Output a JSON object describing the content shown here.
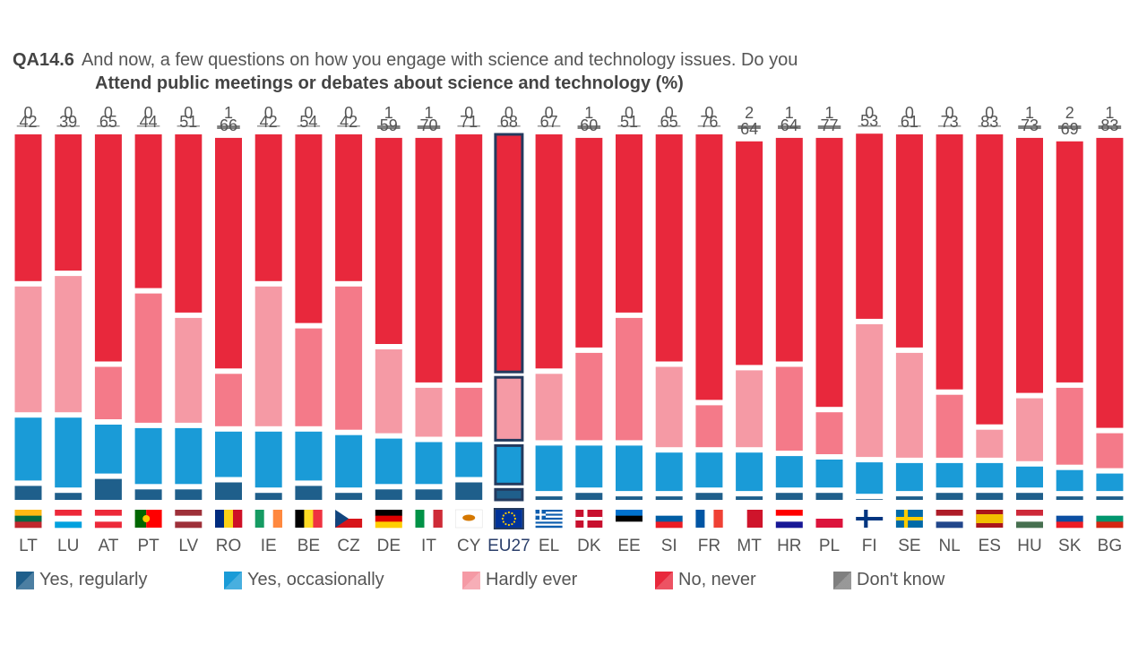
{
  "header": {
    "question_code": "QA14.6",
    "question_text": "And now, a few questions on how you engage with science and technology issues. Do you",
    "subtitle": "Attend public meetings or debates about science and technology  (%)"
  },
  "colors": {
    "yes_regularly": "#1f5f8b",
    "yes_occasionally": "#1a9bd7",
    "hardly_ever": "#f59aa5",
    "hardly_ever_alt": "#f47a89",
    "no_never": "#e8283c",
    "dont_know": "#7f7f7f",
    "highlight_border": "#243a5e",
    "label": "#555555"
  },
  "chart_data": {
    "type": "bar",
    "stacked": true,
    "categories": [
      "LT",
      "LU",
      "AT",
      "PT",
      "LV",
      "RO",
      "IE",
      "BE",
      "CZ",
      "DE",
      "IT",
      "CY",
      "EU27",
      "EL",
      "DK",
      "EE",
      "SI",
      "FR",
      "MT",
      "HR",
      "PL",
      "FI",
      "SE",
      "NL",
      "ES",
      "HU",
      "SK",
      "BG"
    ],
    "highlight": "EU27",
    "series": [
      {
        "name": "Yes, regularly",
        "values": [
          4,
          2,
          6,
          3,
          3,
          5,
          2,
          4,
          2,
          3,
          3,
          5,
          3,
          1,
          2,
          1,
          1,
          2,
          1,
          2,
          2,
          0,
          1,
          2,
          2,
          2,
          1,
          1
        ]
      },
      {
        "name": "Yes, occasionally",
        "values": [
          18,
          20,
          14,
          16,
          16,
          13,
          16,
          14,
          15,
          13,
          12,
          10,
          11,
          13,
          12,
          13,
          11,
          10,
          11,
          9,
          8,
          9,
          8,
          7,
          7,
          6,
          6,
          5
        ]
      },
      {
        "name": "Hardly ever",
        "values": [
          36,
          39,
          15,
          37,
          30,
          15,
          40,
          28,
          41,
          24,
          14,
          14,
          18,
          19,
          25,
          35,
          23,
          12,
          22,
          24,
          12,
          38,
          30,
          18,
          8,
          18,
          22,
          10
        ]
      },
      {
        "name": "No, never",
        "values": [
          42,
          39,
          65,
          44,
          51,
          66,
          42,
          54,
          42,
          59,
          70,
          71,
          68,
          67,
          60,
          51,
          65,
          76,
          64,
          64,
          77,
          53,
          61,
          73,
          83,
          73,
          69,
          83
        ]
      },
      {
        "name": "Don't know",
        "values": [
          0,
          0,
          0,
          0,
          0,
          1,
          0,
          0,
          0,
          1,
          1,
          0,
          0,
          0,
          1,
          0,
          0,
          0,
          2,
          1,
          1,
          0,
          0,
          0,
          0,
          1,
          2,
          1
        ]
      }
    ]
  },
  "flags": {
    "LT": {
      "type": "h",
      "colors": [
        "#fdb913",
        "#006a44",
        "#c1272d"
      ]
    },
    "LU": {
      "type": "h",
      "colors": [
        "#ed2939",
        "#ffffff",
        "#00a1de"
      ]
    },
    "AT": {
      "type": "h",
      "colors": [
        "#ed2939",
        "#ffffff",
        "#ed2939"
      ]
    },
    "PT": {
      "type": "vsplit",
      "colors": [
        "#006600",
        "#ff0000"
      ]
    },
    "LV": {
      "type": "h",
      "colors": [
        "#9e3039",
        "#ffffff",
        "#9e3039"
      ]
    },
    "RO": {
      "type": "v",
      "colors": [
        "#002b7f",
        "#fcd116",
        "#ce1126"
      ]
    },
    "IE": {
      "type": "v",
      "colors": [
        "#169b62",
        "#ffffff",
        "#ff883e"
      ]
    },
    "BE": {
      "type": "v",
      "colors": [
        "#000000",
        "#fdda24",
        "#ef3340"
      ]
    },
    "CZ": {
      "type": "cz",
      "colors": [
        "#ffffff",
        "#d7141a",
        "#11457e"
      ]
    },
    "DE": {
      "type": "h",
      "colors": [
        "#000000",
        "#dd0000",
        "#ffce00"
      ]
    },
    "IT": {
      "type": "v",
      "colors": [
        "#009246",
        "#ffffff",
        "#ce2b37"
      ]
    },
    "CY": {
      "type": "solid",
      "colors": [
        "#ffffff",
        "#d57800"
      ]
    },
    "EU27": {
      "type": "eu",
      "colors": [
        "#003399",
        "#ffcc00"
      ]
    },
    "EL": {
      "type": "stripes",
      "colors": [
        "#0d5eaf",
        "#ffffff"
      ]
    },
    "DK": {
      "type": "nordic",
      "colors": [
        "#c8102e",
        "#ffffff"
      ]
    },
    "EE": {
      "type": "h",
      "colors": [
        "#0072ce",
        "#000000",
        "#ffffff"
      ]
    },
    "SI": {
      "type": "h",
      "colors": [
        "#ffffff",
        "#005da4",
        "#ed1c24"
      ]
    },
    "FR": {
      "type": "v",
      "colors": [
        "#0055a4",
        "#ffffff",
        "#ef4135"
      ]
    },
    "MT": {
      "type": "vsplit",
      "colors": [
        "#ffffff",
        "#cf142b"
      ]
    },
    "HR": {
      "type": "h",
      "colors": [
        "#ff0000",
        "#ffffff",
        "#171796"
      ]
    },
    "PL": {
      "type": "h2",
      "colors": [
        "#ffffff",
        "#dc143c"
      ]
    },
    "FI": {
      "type": "nordic",
      "colors": [
        "#ffffff",
        "#003580"
      ]
    },
    "SE": {
      "type": "nordic",
      "colors": [
        "#006aa7",
        "#fecc00"
      ]
    },
    "NL": {
      "type": "h",
      "colors": [
        "#ae1c28",
        "#ffffff",
        "#21468b"
      ]
    },
    "ES": {
      "type": "es",
      "colors": [
        "#aa151b",
        "#f1bf00"
      ]
    },
    "HU": {
      "type": "h",
      "colors": [
        "#ce2939",
        "#ffffff",
        "#477050"
      ]
    },
    "SK": {
      "type": "h",
      "colors": [
        "#ffffff",
        "#0b4ea2",
        "#ee1c25"
      ]
    },
    "BG": {
      "type": "h",
      "colors": [
        "#ffffff",
        "#00966e",
        "#d62612"
      ]
    }
  }
}
